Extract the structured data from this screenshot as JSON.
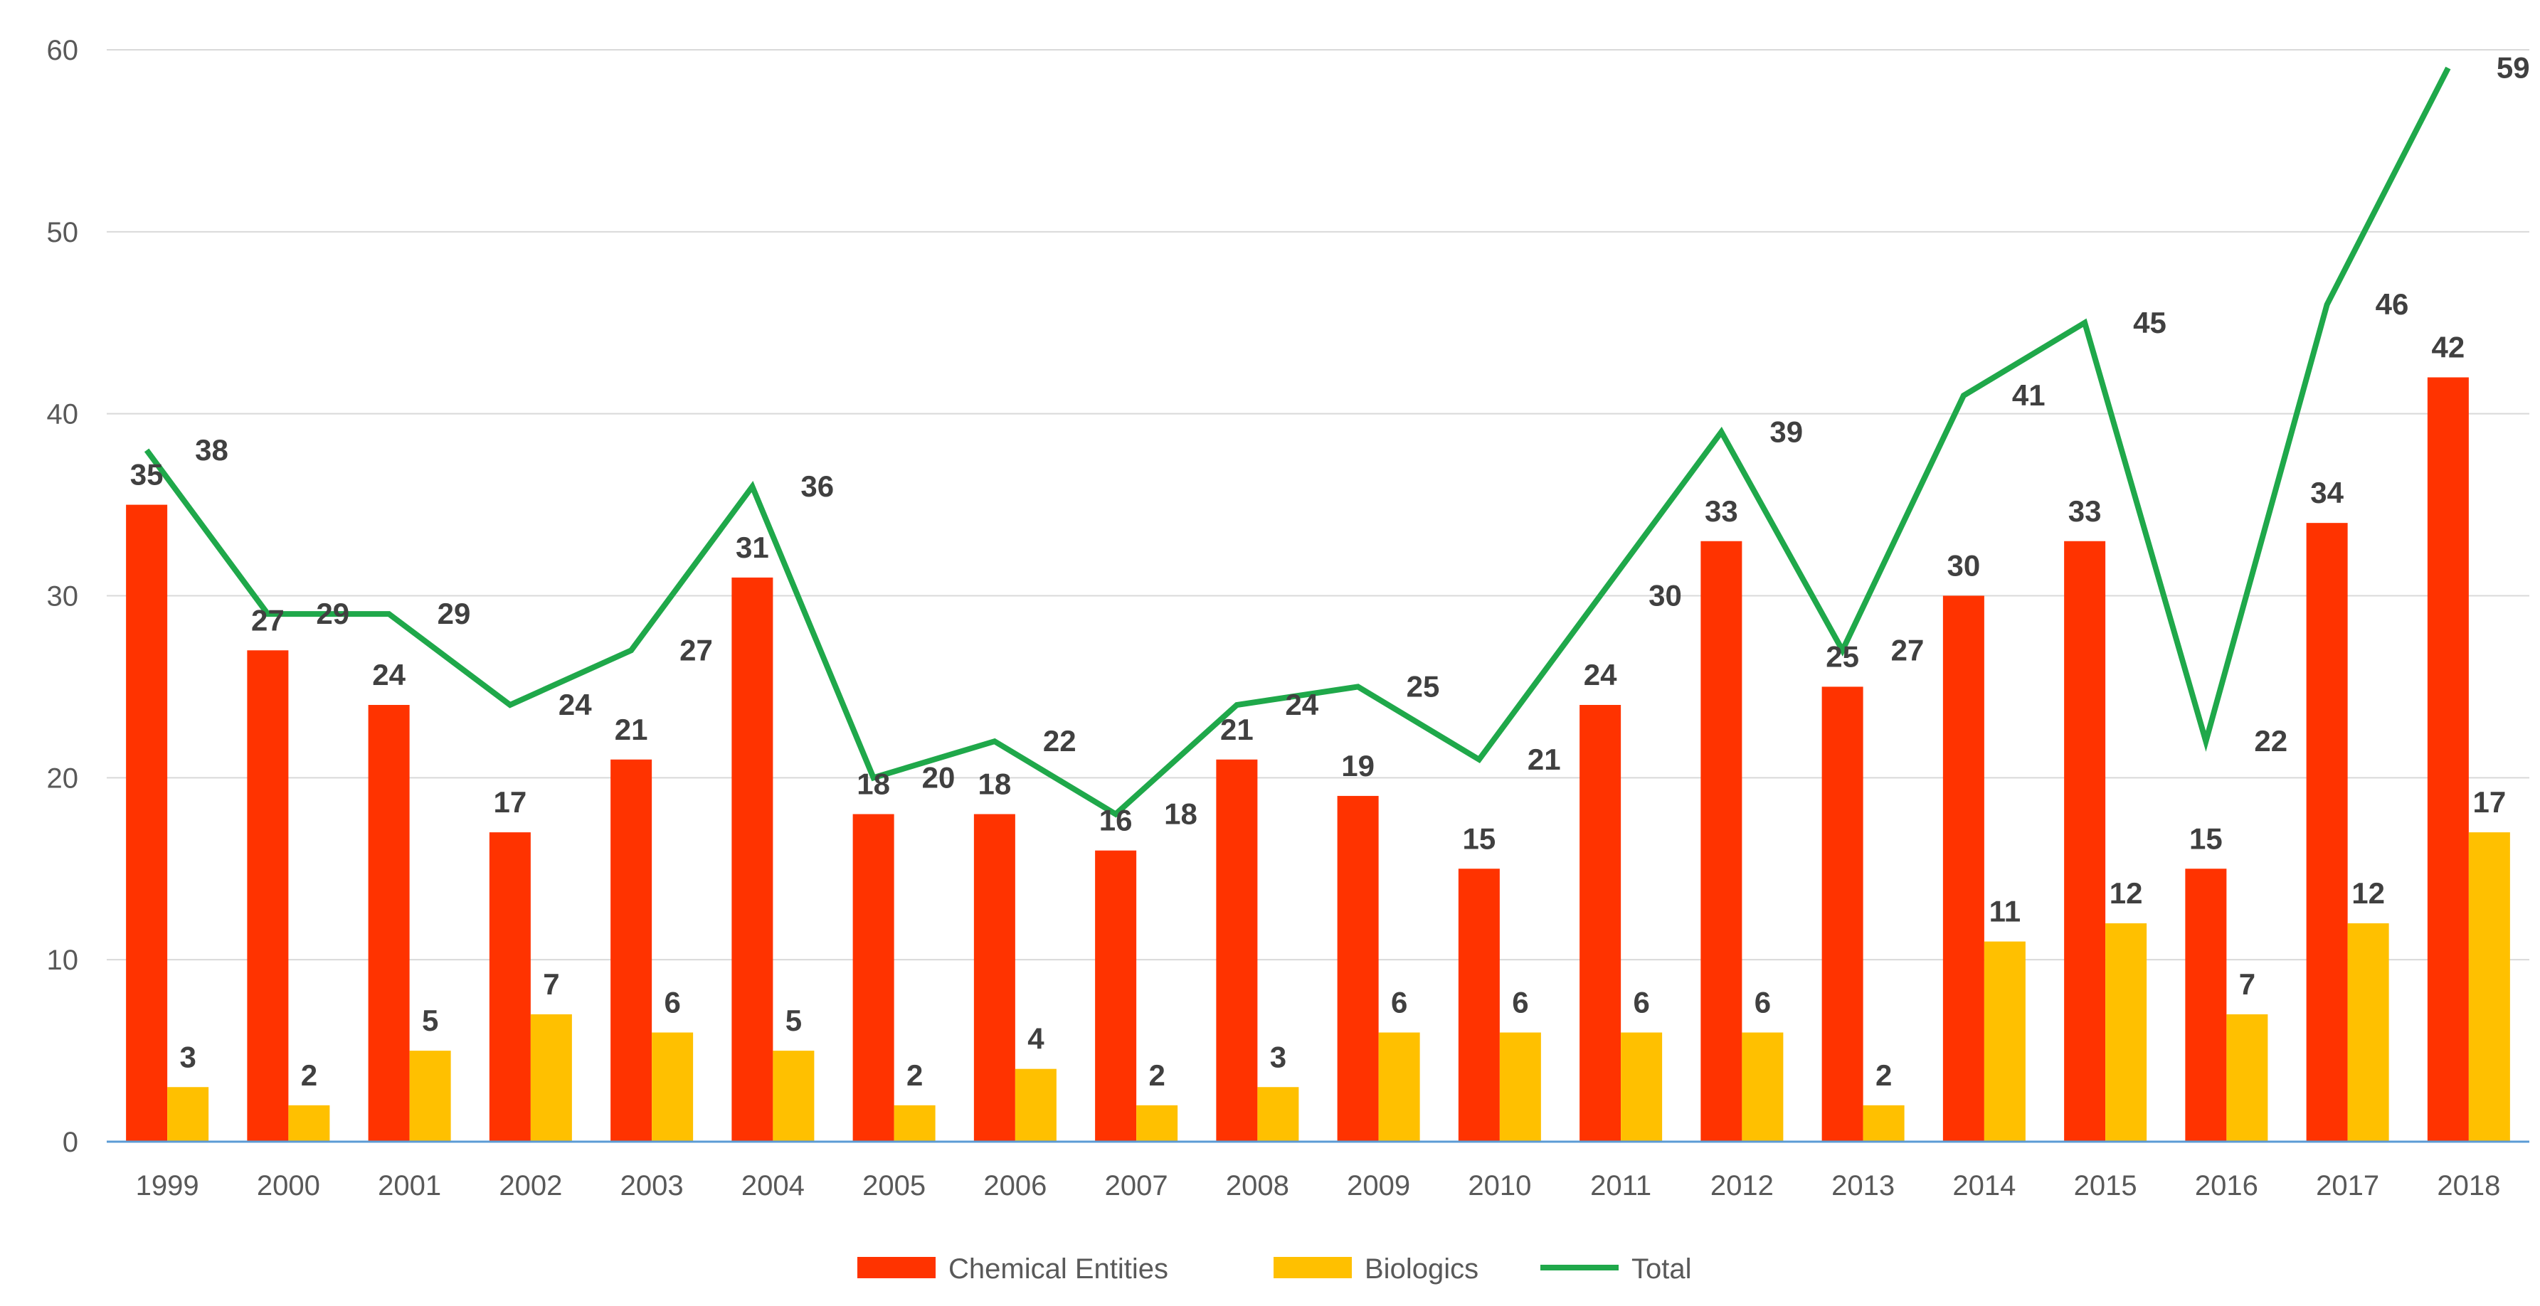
{
  "chart_data": {
    "type": "bar",
    "title": "",
    "xlabel": "",
    "ylabel": "",
    "ylim": [
      0,
      60
    ],
    "yticks": [
      0,
      10,
      20,
      30,
      40,
      50,
      60
    ],
    "grid": true,
    "legend_position": "bottom",
    "categories": [
      "1999",
      "2000",
      "2001",
      "2002",
      "2003",
      "2004",
      "2005",
      "2006",
      "2007",
      "2008",
      "2009",
      "2010",
      "2011",
      "2012",
      "2013",
      "2014",
      "2015",
      "2016",
      "2017",
      "2018"
    ],
    "series": [
      {
        "name": "Chemical Entities",
        "kind": "bar",
        "color": "#ff3300",
        "values": [
          35,
          27,
          24,
          17,
          21,
          31,
          18,
          18,
          16,
          21,
          19,
          15,
          24,
          33,
          25,
          30,
          33,
          15,
          34,
          42
        ]
      },
      {
        "name": "Biologics",
        "kind": "bar",
        "color": "#ffc000",
        "values": [
          3,
          2,
          5,
          7,
          6,
          5,
          2,
          4,
          2,
          3,
          6,
          6,
          6,
          6,
          2,
          11,
          12,
          7,
          12,
          17
        ]
      },
      {
        "name": "Total",
        "kind": "line",
        "color": "#1fa84a",
        "values": [
          38,
          29,
          29,
          24,
          27,
          36,
          20,
          22,
          18,
          24,
          25,
          21,
          30,
          39,
          27,
          41,
          45,
          22,
          46,
          59
        ]
      }
    ]
  }
}
